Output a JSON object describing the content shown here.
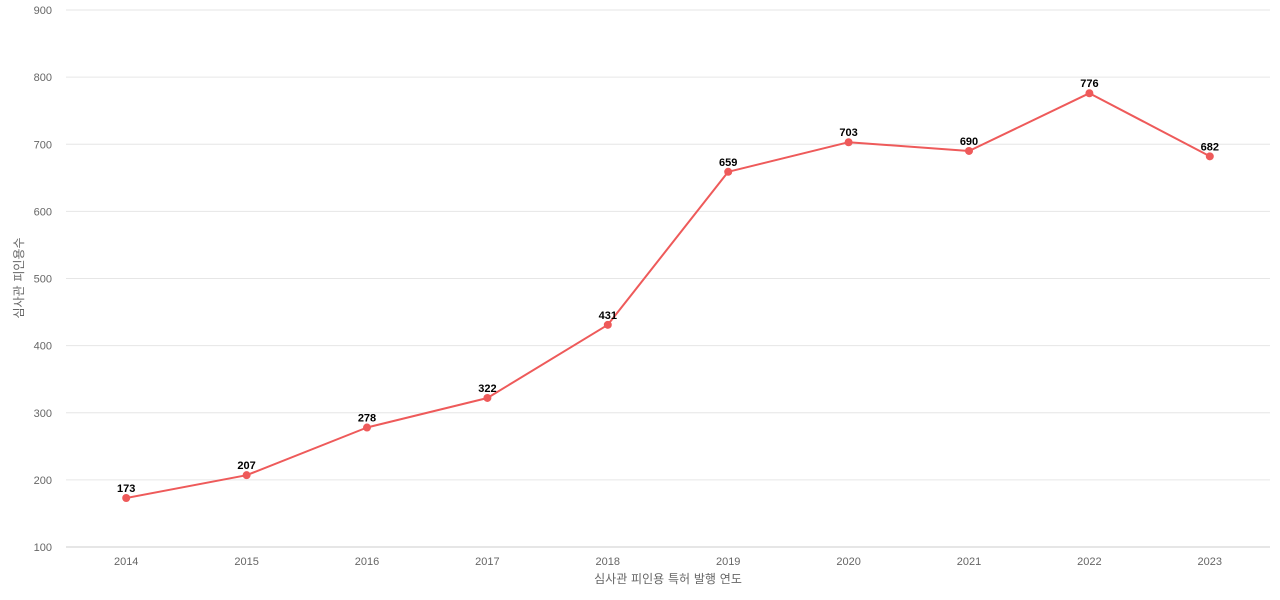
{
  "chart_data": {
    "type": "line",
    "title": "",
    "xlabel": "심사관 피인용 특허 발행 연도",
    "ylabel": "심사관 피인용수",
    "categories": [
      "2014",
      "2015",
      "2016",
      "2017",
      "2018",
      "2019",
      "2020",
      "2021",
      "2022",
      "2023"
    ],
    "series": [
      {
        "name": "",
        "values": [
          173,
          207,
          278,
          322,
          431,
          659,
          703,
          690,
          776,
          682
        ],
        "color": "#ee5a5a"
      }
    ],
    "ylim": [
      100,
      900
    ],
    "yticks": [
      100,
      200,
      300,
      400,
      500,
      600,
      700,
      800,
      900
    ],
    "grid": true,
    "data_labels": true,
    "legend": "none"
  }
}
